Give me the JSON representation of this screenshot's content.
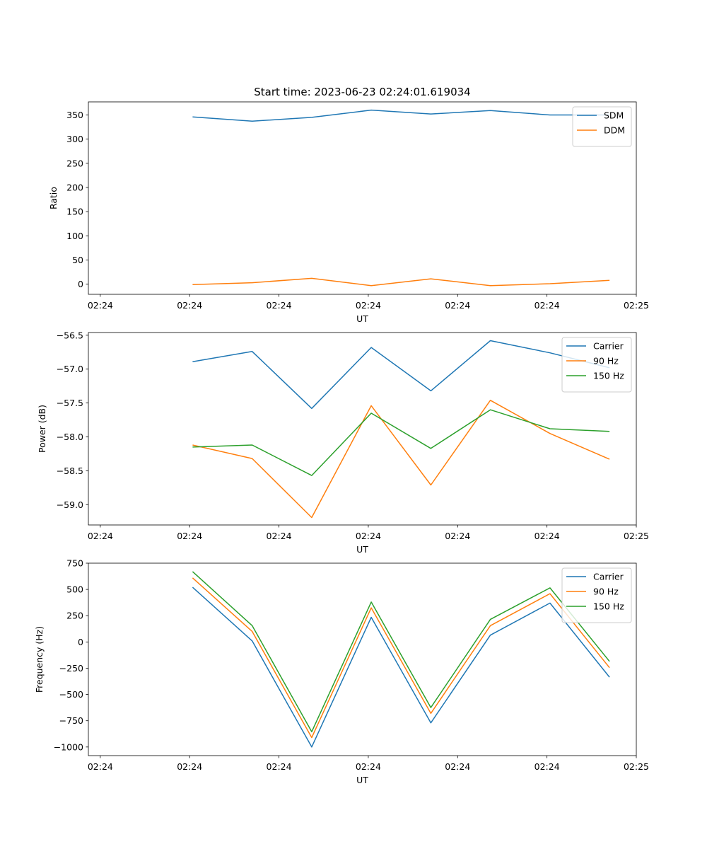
{
  "figure": {
    "suptitle": "Start time: 2023-06-23 02:24:01.619034"
  },
  "colors": {
    "blue": "#1f77b4",
    "orange": "#ff7f0e",
    "green": "#2ca02c"
  },
  "chart_data": [
    {
      "type": "line",
      "title": "Start time: 2023-06-23 02:24:01.619034",
      "xlabel": "UT",
      "ylabel": "Ratio",
      "x": [
        1,
        2,
        3,
        4,
        5,
        6,
        7,
        8
      ],
      "xlim": [
        -0.75,
        8.45
      ],
      "xtick_positions": [
        -0.55,
        0.95,
        2.45,
        3.95,
        5.45,
        6.95,
        8.45
      ],
      "xtick_labels": [
        "02:24",
        "02:24",
        "02:24",
        "02:24",
        "02:24",
        "02:24",
        "02:25"
      ],
      "ylim": [
        -21,
        377
      ],
      "yticks": [
        0,
        50,
        100,
        150,
        200,
        250,
        300,
        350
      ],
      "legend": "top-right",
      "grid": false,
      "series": [
        {
          "name": "SDM",
          "color": "#1f77b4",
          "values": [
            346,
            337,
            345,
            360,
            352,
            359,
            350,
            350
          ]
        },
        {
          "name": "DDM",
          "color": "#ff7f0e",
          "values": [
            -1,
            3,
            12,
            -3,
            11,
            -3,
            1,
            8
          ]
        }
      ]
    },
    {
      "type": "line",
      "title": "",
      "xlabel": "UT",
      "ylabel": "Power (dB)",
      "x": [
        1,
        2,
        3,
        4,
        5,
        6,
        7,
        8
      ],
      "xlim": [
        -0.75,
        8.45
      ],
      "xtick_positions": [
        -0.55,
        0.95,
        2.45,
        3.95,
        5.45,
        6.95,
        8.45
      ],
      "xtick_labels": [
        "02:24",
        "02:24",
        "02:24",
        "02:24",
        "02:24",
        "02:24",
        "02:25"
      ],
      "ylim": [
        -59.3,
        -56.46
      ],
      "yticks": [
        -59.0,
        -58.5,
        -58.0,
        -57.5,
        -57.0,
        -56.5
      ],
      "ytick_labels": [
        "−59.0",
        "−58.5",
        "−58.0",
        "−57.5",
        "−57.0",
        "−56.5"
      ],
      "legend": "top-right",
      "grid": false,
      "series": [
        {
          "name": "Carrier",
          "color": "#1f77b4",
          "values": [
            -56.89,
            -56.74,
            -57.58,
            -56.68,
            -57.32,
            -56.58,
            -56.76,
            -56.98
          ]
        },
        {
          "name": "90 Hz",
          "color": "#ff7f0e",
          "values": [
            -58.12,
            -58.32,
            -59.19,
            -57.54,
            -58.71,
            -57.46,
            -57.95,
            -58.33
          ]
        },
        {
          "name": "150 Hz",
          "color": "#2ca02c",
          "values": [
            -58.15,
            -58.12,
            -58.57,
            -57.65,
            -58.17,
            -57.6,
            -57.88,
            -57.92
          ]
        }
      ]
    },
    {
      "type": "line",
      "title": "",
      "xlabel": "UT",
      "ylabel": "Frequency (Hz)",
      "x": [
        1,
        2,
        3,
        4,
        5,
        6,
        7,
        8
      ],
      "xlim": [
        -0.75,
        8.45
      ],
      "xtick_positions": [
        -0.55,
        0.95,
        2.45,
        3.95,
        5.45,
        6.95,
        8.45
      ],
      "xtick_labels": [
        "02:24",
        "02:24",
        "02:24",
        "02:24",
        "02:24",
        "02:24",
        "02:25"
      ],
      "ylim": [
        -1082,
        750
      ],
      "yticks": [
        -1000,
        -750,
        -500,
        -250,
        0,
        250,
        500,
        750
      ],
      "ytick_labels": [
        "−1000",
        "−750",
        "−500",
        "−250",
        "0",
        "250",
        "500",
        "750"
      ],
      "legend": "top-right",
      "grid": false,
      "series": [
        {
          "name": "Carrier",
          "color": "#1f77b4",
          "values": [
            520,
            10,
            -1000,
            235,
            -770,
            65,
            370,
            -335
          ]
        },
        {
          "name": "90 Hz",
          "color": "#ff7f0e",
          "values": [
            610,
            100,
            -910,
            325,
            -680,
            155,
            460,
            -245
          ]
        },
        {
          "name": "150 Hz",
          "color": "#2ca02c",
          "values": [
            670,
            155,
            -855,
            380,
            -625,
            215,
            515,
            -185
          ]
        }
      ]
    }
  ]
}
